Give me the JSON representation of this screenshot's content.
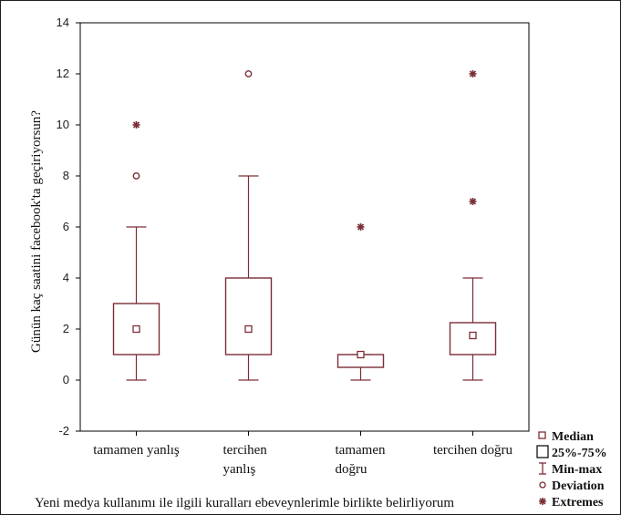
{
  "colors": {
    "box": "#7b2e35",
    "axis": "#000000",
    "frame": "#1f1f1f"
  },
  "chart_data": {
    "type": "boxplot",
    "ylabel": "Günün kaç saatini facebook'ta geçiriyorsun?",
    "xlabel": "Yeni medya kullanımı ile ilgili kuralları ebeveynlerimle birlikte belirliyorum",
    "ylim": [
      -2,
      14
    ],
    "yticks": [
      -2,
      0,
      2,
      4,
      6,
      8,
      10,
      12,
      14
    ],
    "categories": [
      {
        "lines": [
          "tamamen yanlış"
        ]
      },
      {
        "lines": [
          "tercihen",
          "yanlış"
        ]
      },
      {
        "lines": [
          "tamamen",
          "doğru"
        ]
      },
      {
        "lines": [
          "tercihen doğru"
        ]
      }
    ],
    "series": [
      {
        "median": 2,
        "q1": 1,
        "q3": 3,
        "min": 0,
        "max": 6,
        "outliers": [
          8
        ],
        "extremes": [
          10
        ]
      },
      {
        "median": 2,
        "q1": 1,
        "q3": 4,
        "min": 0,
        "max": 8,
        "outliers": [
          12
        ],
        "extremes": []
      },
      {
        "median": 1,
        "q1": 0.5,
        "q3": 1,
        "min": 0,
        "max": 1,
        "outliers": [],
        "extremes": [
          6
        ]
      },
      {
        "median": 1.75,
        "q1": 1,
        "q3": 2.25,
        "min": 0,
        "max": 4,
        "outliers": [],
        "extremes": [
          7,
          12
        ]
      }
    ],
    "legend": {
      "position": "bottom-right",
      "items": [
        {
          "symbol": "median-square",
          "label": "Median"
        },
        {
          "symbol": "box",
          "label": "25%-75%"
        },
        {
          "symbol": "whisker",
          "label": "Min-max"
        },
        {
          "symbol": "circle",
          "label": "Deviation"
        },
        {
          "symbol": "star",
          "label": "Extremes"
        }
      ]
    }
  }
}
